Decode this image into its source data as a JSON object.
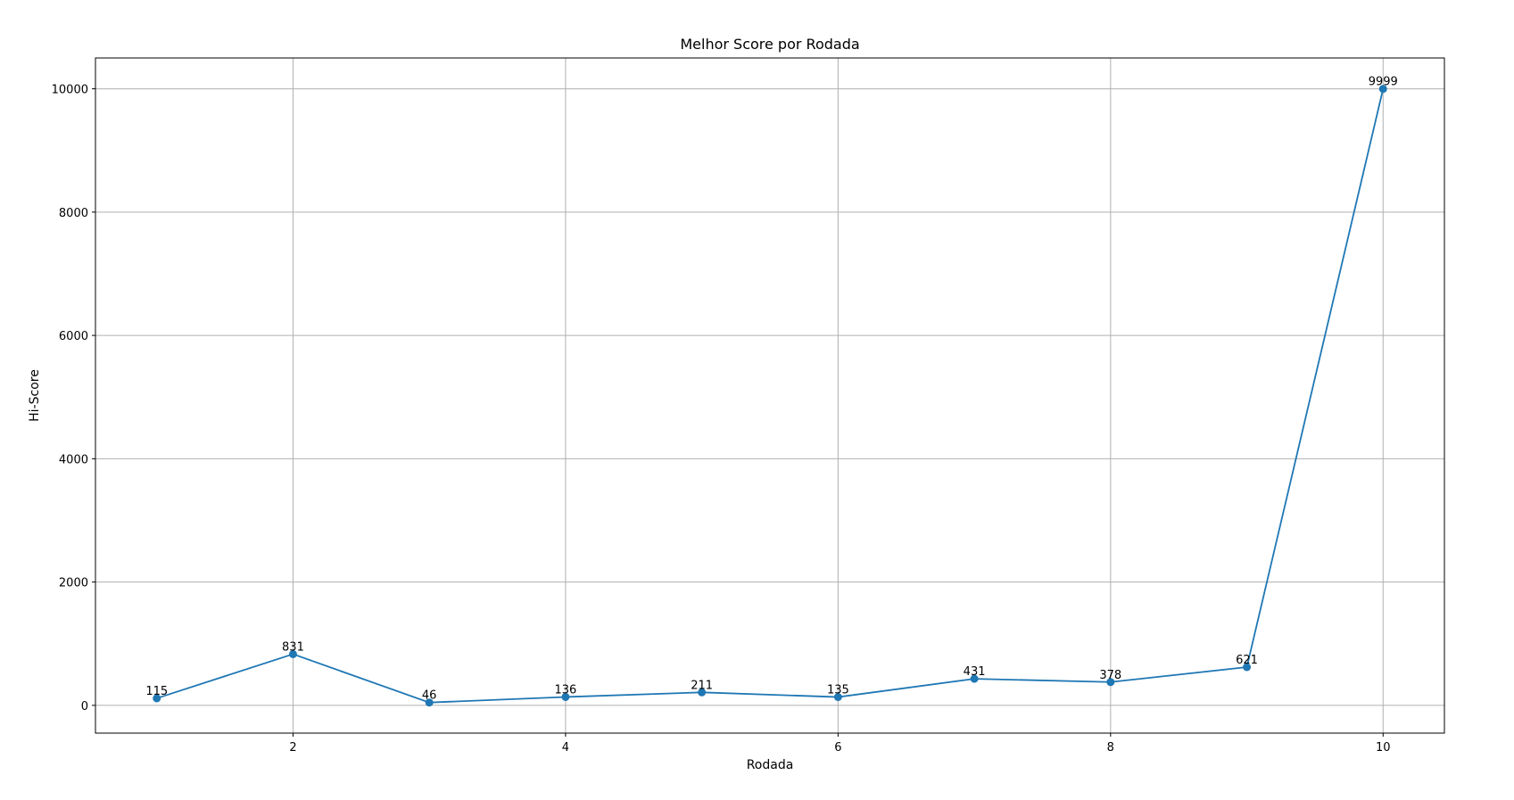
{
  "chart_data": {
    "type": "line",
    "title": "Melhor Score por Rodada",
    "xlabel": "Rodada",
    "ylabel": "Hi-Score",
    "x": [
      1,
      2,
      3,
      4,
      5,
      6,
      7,
      8,
      9,
      10
    ],
    "series": [
      {
        "values": [
          115,
          831,
          46,
          136,
          211,
          135,
          431,
          378,
          621,
          9999
        ],
        "color": "#1f77b4",
        "marker": "circle"
      }
    ],
    "data_labels": [
      "115",
      "831",
      "46",
      "136",
      "211",
      "135",
      "431",
      "378",
      "621",
      "9999"
    ],
    "xlim": [
      0.55,
      10.45
    ],
    "ylim": [
      -450,
      10500
    ],
    "xticks": [
      2,
      4,
      6,
      8,
      10
    ],
    "xtick_labels": [
      "2",
      "4",
      "6",
      "8",
      "10"
    ],
    "yticks": [
      0,
      2000,
      4000,
      6000,
      8000,
      10000
    ],
    "ytick_labels": [
      "0",
      "2000",
      "4000",
      "6000",
      "8000",
      "10000"
    ],
    "grid": true,
    "legend": "none"
  }
}
